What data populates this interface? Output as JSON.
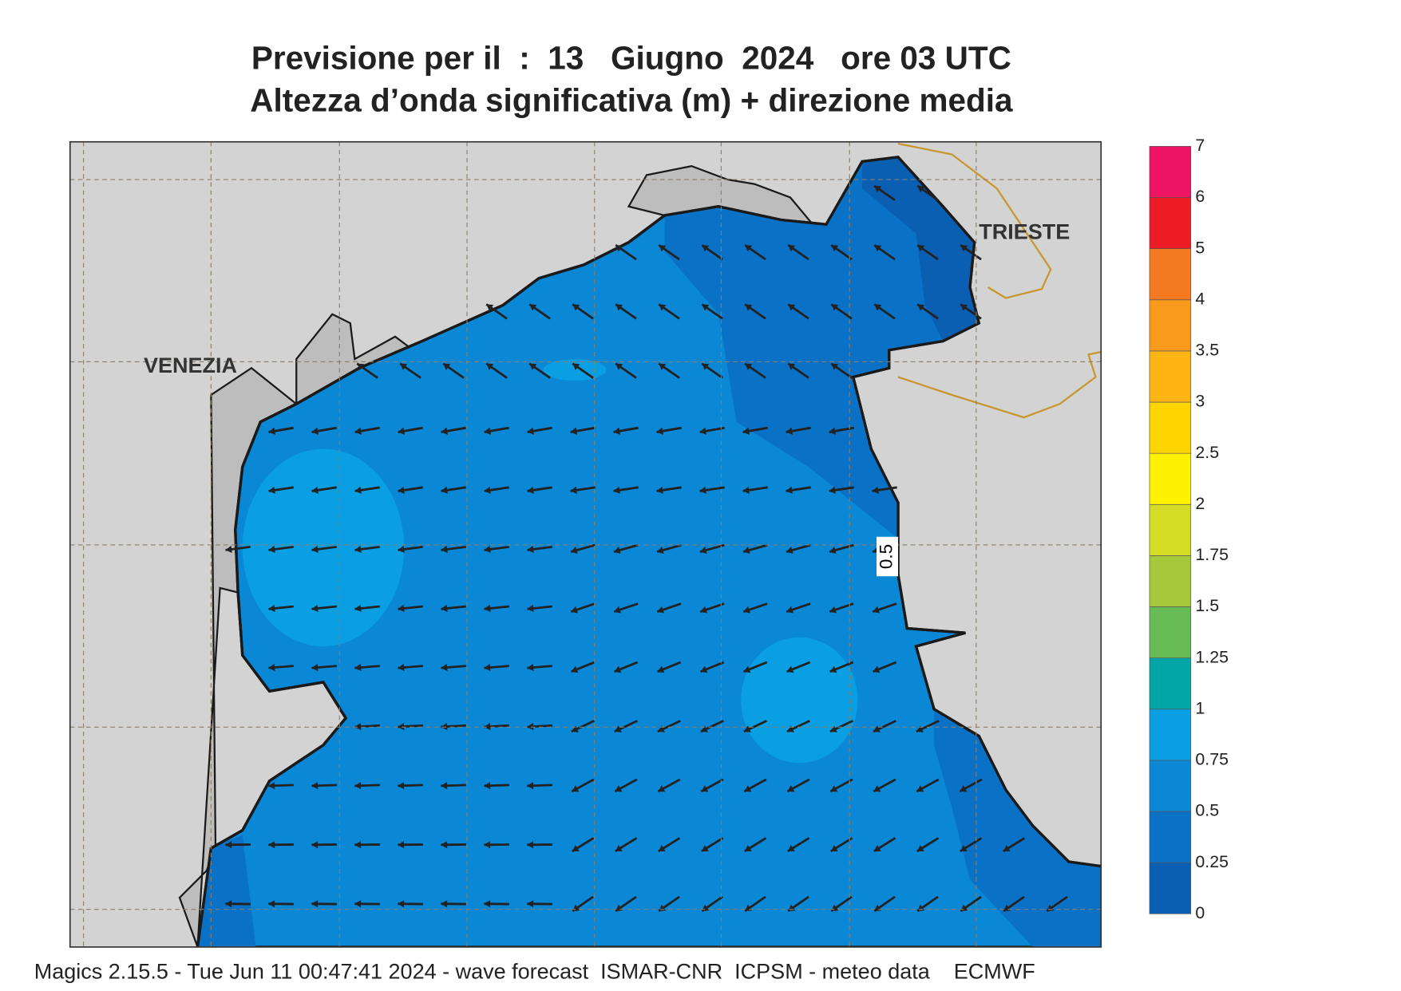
{
  "title": {
    "line1": "Previsione per il  :  13   Giugno  2024   ore 03 UTC",
    "line2": "Altezza d’onda significativa (m) + direzione media"
  },
  "map": {
    "place_labels": [
      "VENEZIA",
      "TRIESTE"
    ],
    "contour_label": "0.5"
  },
  "colorbar": {
    "levels": [
      0,
      0.25,
      0.5,
      0.75,
      1,
      1.25,
      1.5,
      1.75,
      2,
      2.5,
      3,
      3.5,
      4,
      5,
      6,
      7
    ],
    "colors": [
      "#0a5fb2",
      "#0a72c6",
      "#0a88d6",
      "#0a9ee2",
      "#00a6a6",
      "#66bb55",
      "#a6c93c",
      "#d6dd26",
      "#fff200",
      "#ffd500",
      "#fdb515",
      "#f89a1c",
      "#f47920",
      "#ec1c24",
      "#ec1463"
    ]
  },
  "footer": "Magics 2.15.5 - Tue Jun 11 00:47:41 2024 - wave forecast  ISMAR-CNR  ICPSM - meteo data    ECMWF"
}
